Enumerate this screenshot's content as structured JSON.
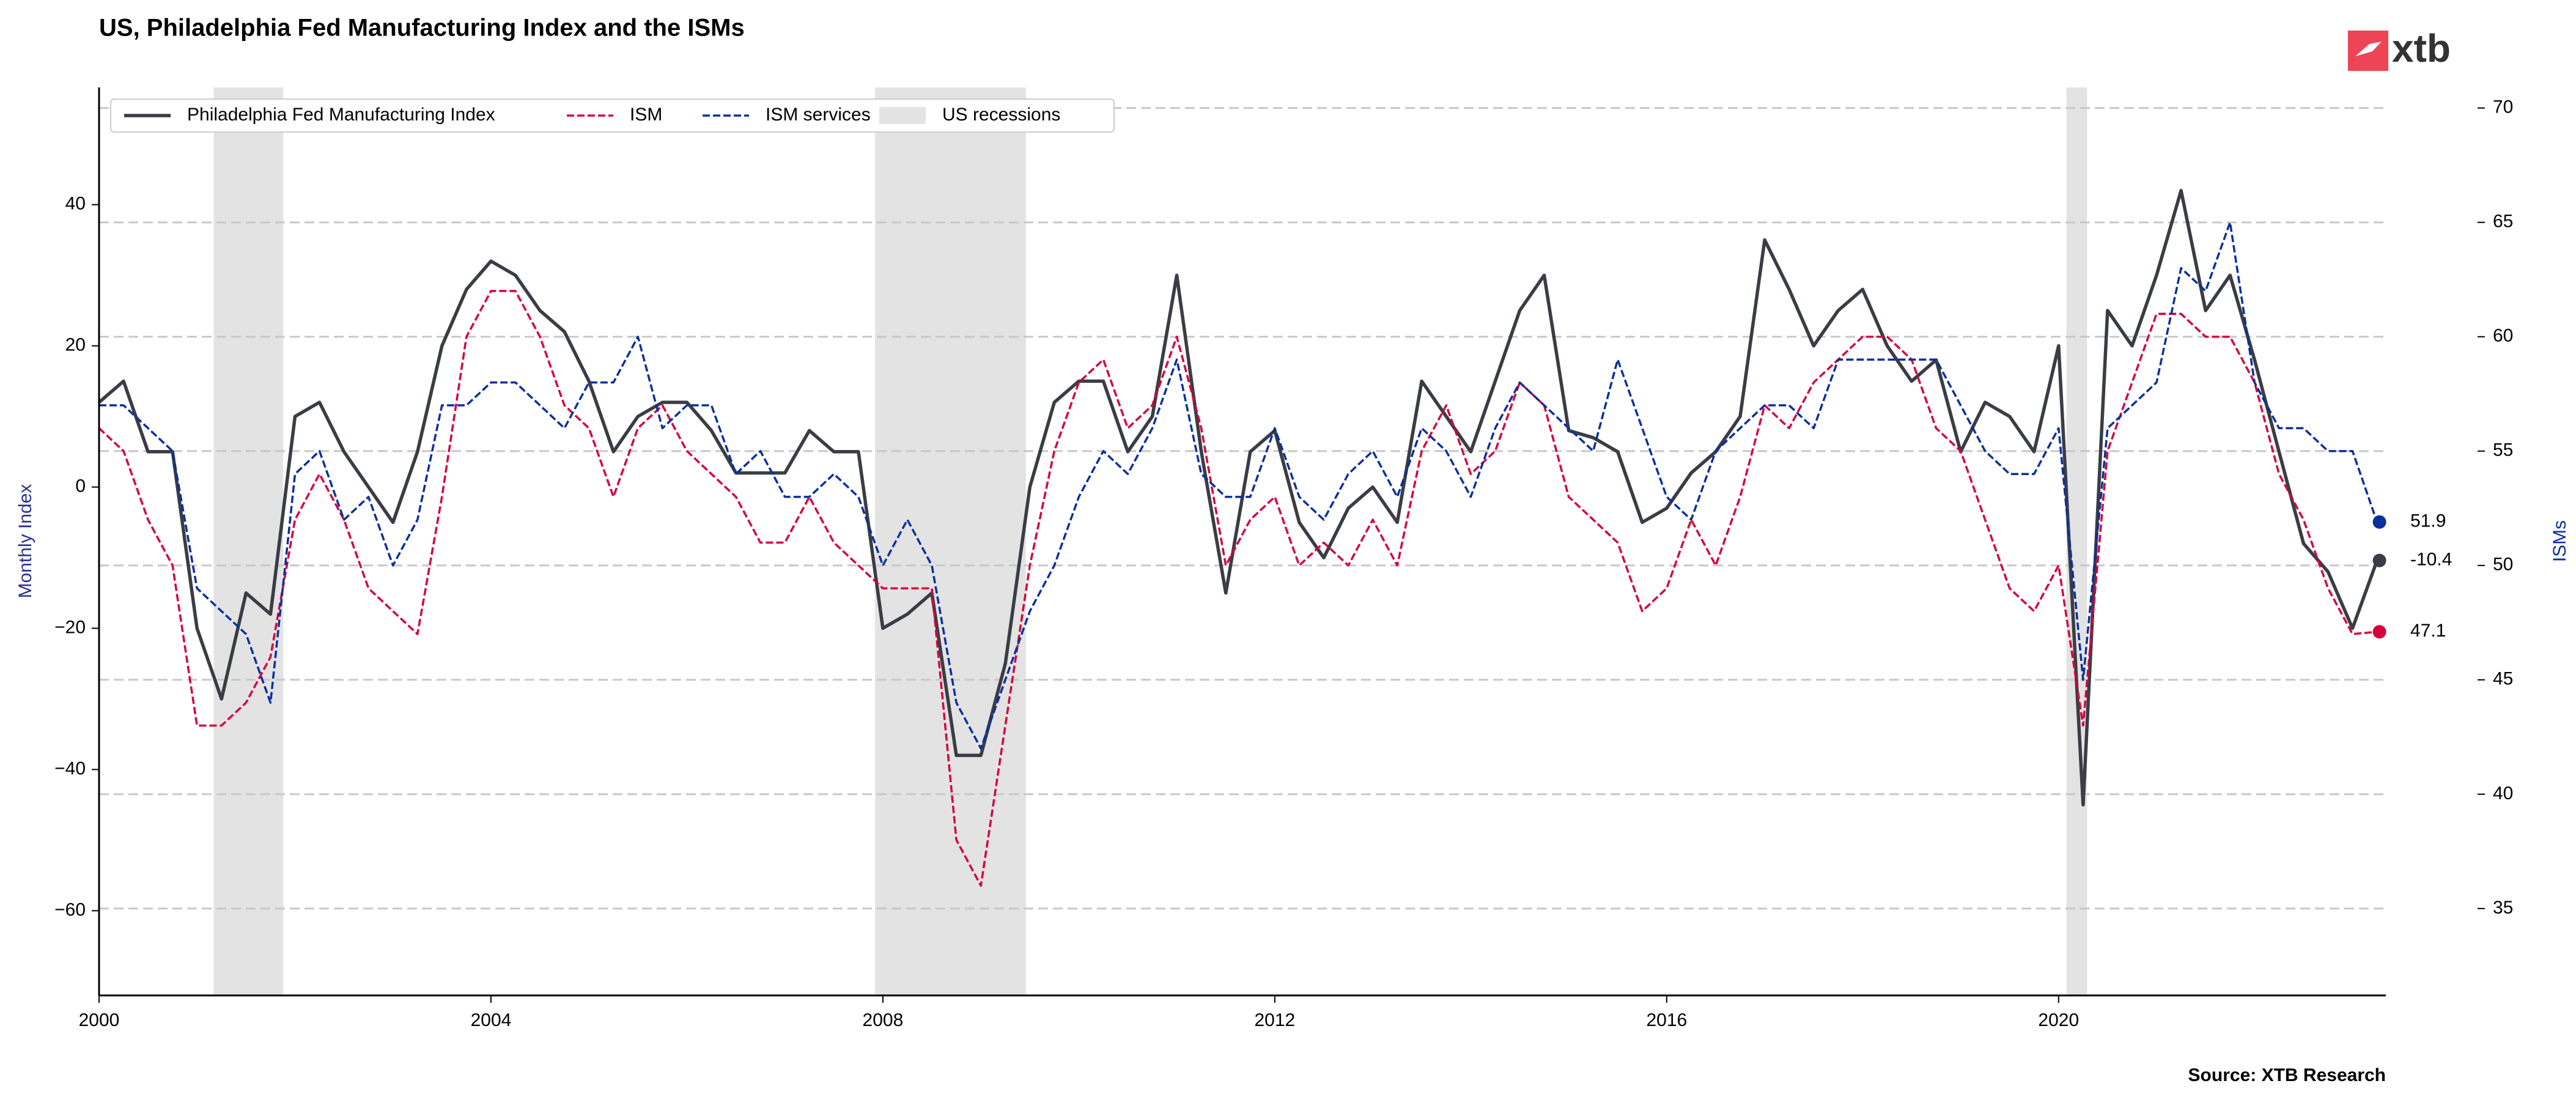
{
  "chart_data": {
    "type": "line",
    "title": "US, Philadelphia Fed Manufacturing Index  and the ISMs",
    "ylabel": "Monthly Index",
    "y2label": "ISMs",
    "source": "Source: XTB Research",
    "logo": "xtb",
    "x": [
      2000,
      2000.25,
      2000.5,
      2000.75,
      2001,
      2001.25,
      2001.5,
      2001.75,
      2002,
      2002.25,
      2002.5,
      2002.75,
      2003,
      2003.25,
      2003.5,
      2003.75,
      2004,
      2004.25,
      2004.5,
      2004.75,
      2005,
      2005.25,
      2005.5,
      2005.75,
      2006,
      2006.25,
      2006.5,
      2006.75,
      2007,
      2007.25,
      2007.5,
      2007.75,
      2008,
      2008.25,
      2008.5,
      2008.75,
      2009,
      2009.25,
      2009.5,
      2009.75,
      2010,
      2010.25,
      2010.5,
      2010.75,
      2011,
      2011.25,
      2011.5,
      2011.75,
      2012,
      2012.25,
      2012.5,
      2012.75,
      2013,
      2013.25,
      2013.5,
      2013.75,
      2014,
      2014.25,
      2014.5,
      2014.75,
      2015,
      2015.25,
      2015.5,
      2015.75,
      2016,
      2016.25,
      2016.5,
      2016.75,
      2017,
      2017.25,
      2017.5,
      2017.75,
      2018,
      2018.25,
      2018.5,
      2018.75,
      2019,
      2019.25,
      2019.5,
      2019.75,
      2020,
      2020.25,
      2020.5,
      2020.75,
      2021,
      2021.25,
      2021.5,
      2021.75,
      2022,
      2022.25,
      2022.5,
      2022.75,
      2023,
      2023.25
    ],
    "series": [
      {
        "name": "Philadelphia Fed Manufacturing Index",
        "color": "#3a3d45",
        "style": "solid",
        "values": [
          12,
          15,
          5,
          5,
          -20,
          -30,
          -15,
          -18,
          10,
          12,
          5,
          0,
          -5,
          5,
          20,
          28,
          32,
          30,
          25,
          22,
          15,
          5,
          10,
          12,
          12,
          8,
          2,
          2,
          2,
          8,
          5,
          5,
          -20,
          -18,
          -15,
          -38,
          -38,
          -25,
          0,
          12,
          15,
          15,
          5,
          10,
          30,
          5,
          -15,
          5,
          8,
          -5,
          -10,
          -3,
          0,
          -5,
          15,
          10,
          5,
          15,
          25,
          30,
          8,
          7,
          5,
          -5,
          -3,
          2,
          5,
          10,
          35,
          28,
          20,
          25,
          28,
          20,
          15,
          18,
          5,
          12,
          10,
          5,
          20,
          -45,
          25,
          20,
          30,
          42,
          25,
          30,
          18,
          5,
          -8,
          -12,
          -20,
          -10.4
        ]
      },
      {
        "name": "ISM",
        "color": "#d6003c",
        "style": "dashed",
        "axis": "y2",
        "values": [
          56,
          55,
          52,
          50,
          43,
          43,
          44,
          46,
          52,
          54,
          52,
          49,
          48,
          47,
          53,
          60,
          62,
          62,
          60,
          57,
          56,
          53,
          56,
          57,
          55,
          54,
          53,
          51,
          51,
          53,
          51,
          50,
          49,
          49,
          49,
          38,
          36,
          43,
          50,
          55,
          58,
          59,
          56,
          57,
          60,
          56,
          50,
          52,
          53,
          50,
          51,
          50,
          52,
          50,
          55,
          57,
          54,
          55,
          58,
          57,
          53,
          52,
          51,
          48,
          49,
          52,
          50,
          53,
          57,
          56,
          58,
          59,
          60,
          60,
          59,
          56,
          55,
          52,
          49,
          48,
          50,
          43,
          55,
          58,
          61,
          61,
          60,
          60,
          58,
          54,
          52,
          49,
          47,
          47.1
        ]
      },
      {
        "name": "ISM services",
        "color": "#0a2f9e",
        "style": "dashed",
        "axis": "y2",
        "values": [
          57,
          57,
          56,
          55,
          49,
          48,
          47,
          44,
          54,
          55,
          52,
          53,
          50,
          52,
          57,
          57,
          58,
          58,
          57,
          56,
          58,
          58,
          60,
          56,
          57,
          57,
          54,
          55,
          53,
          53,
          54,
          53,
          50,
          52,
          50,
          44,
          42,
          45,
          48,
          50,
          53,
          55,
          54,
          56,
          59,
          54,
          53,
          53,
          56,
          53,
          52,
          54,
          55,
          53,
          56,
          55,
          53,
          56,
          58,
          57,
          56,
          55,
          59,
          56,
          53,
          52,
          55,
          56,
          57,
          57,
          56,
          59,
          59,
          59,
          59,
          59,
          57,
          55,
          54,
          54,
          56,
          45,
          56,
          57,
          58,
          63,
          62,
          65,
          58,
          56,
          56,
          55,
          55,
          51.9
        ]
      }
    ],
    "recessions": {
      "name": "US recessions",
      "color": "#e3e3e3",
      "spans": [
        [
          2001.17,
          2001.88
        ],
        [
          2007.92,
          2009.46
        ],
        [
          2020.08,
          2020.29
        ]
      ]
    },
    "xlim": [
      2000,
      2023.34
    ],
    "xticks": [
      2000,
      2004,
      2008,
      2012,
      2016,
      2020
    ],
    "ylim": [
      -72,
      56.6
    ],
    "yticks": [
      {
        "value": -60,
        "label": "−60"
      },
      {
        "value": -40,
        "label": "−40"
      },
      {
        "value": -20,
        "label": "−20"
      },
      0,
      20,
      40
    ],
    "y2lim": [
      31.2,
      70.9
    ],
    "y2ticks": [
      35,
      40,
      45,
      50,
      55,
      60,
      65,
      70
    ],
    "grid": true,
    "legend": "upper left"
  }
}
